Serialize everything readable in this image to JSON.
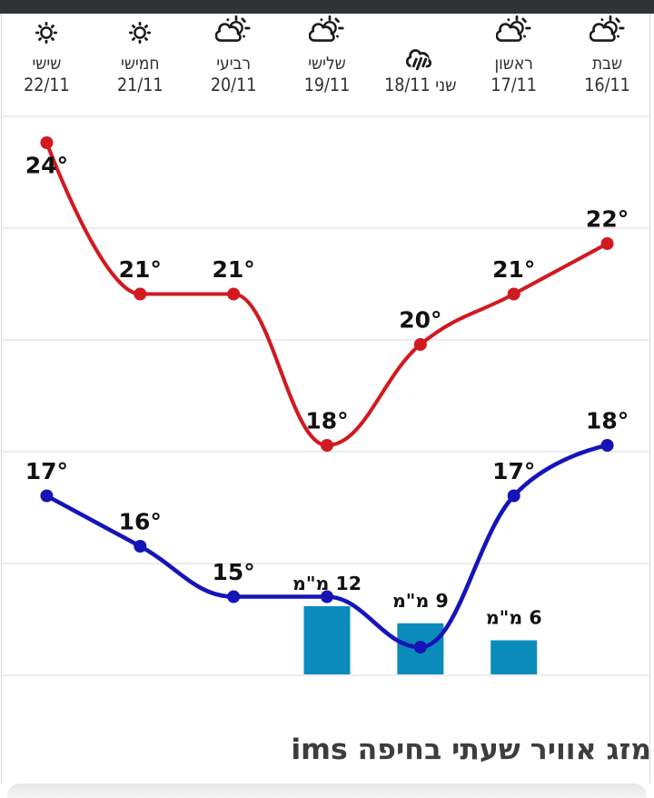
{
  "status_bar": {
    "background": "#313236"
  },
  "widget": {
    "background": "#ffffff",
    "border_color": "#d9d9d9"
  },
  "header": {
    "text_color": "#2f2f2f",
    "icon_color": "#1a1a1a"
  },
  "chart_data": {
    "type": "line",
    "direction": "rtl",
    "title": "מזג אוויר שעתי בחיפה ims",
    "grid": true,
    "grid_color": "#e5e5e5",
    "legend": false,
    "label_color": "#111111",
    "days": [
      {
        "day": "שבת",
        "date": "16/11",
        "icon": "sun-cloud",
        "single_line": false
      },
      {
        "day": "ראשון",
        "date": "17/11",
        "icon": "sun-cloud",
        "single_line": false
      },
      {
        "day": "שני",
        "date": "18/11",
        "icon": "rain-cloud",
        "single_line": true
      },
      {
        "day": "שלישי",
        "date": "19/11",
        "icon": "sun-cloud",
        "single_line": false
      },
      {
        "day": "רביעי",
        "date": "20/11",
        "icon": "sun-cloud",
        "single_line": false
      },
      {
        "day": "חמישי",
        "date": "21/11",
        "icon": "sun",
        "single_line": false
      },
      {
        "day": "שישי",
        "date": "22/11",
        "icon": "sun",
        "single_line": false
      }
    ],
    "series": [
      {
        "name": "high-temperature",
        "type": "spline",
        "color": "#d11a20",
        "values": [
          22,
          21,
          20,
          18,
          21,
          21,
          24
        ],
        "labels": [
          "22°",
          "21°",
          "20°",
          "18°",
          "21°",
          "21°",
          "24°"
        ]
      },
      {
        "name": "low-temperature",
        "type": "spline",
        "color": "#1414b8",
        "values": [
          18,
          17,
          14,
          15,
          15,
          16,
          17
        ],
        "labels": [
          "18°",
          "17°",
          null,
          null,
          "15°",
          "16°",
          "17°"
        ]
      },
      {
        "name": "precipitation",
        "type": "bar",
        "color": "#0b8bba",
        "values": [
          null,
          6,
          9,
          12,
          null,
          null,
          null
        ],
        "labels": [
          null,
          "6 מ\"מ",
          "9 מ\"מ",
          "12 מ\"מ",
          null,
          null,
          null
        ]
      }
    ]
  },
  "footer": {
    "title": "מזג אוויר שעתי בחיפה ims",
    "title_color": "#3d3d3d"
  },
  "next_card": {
    "background": "#ececec"
  }
}
